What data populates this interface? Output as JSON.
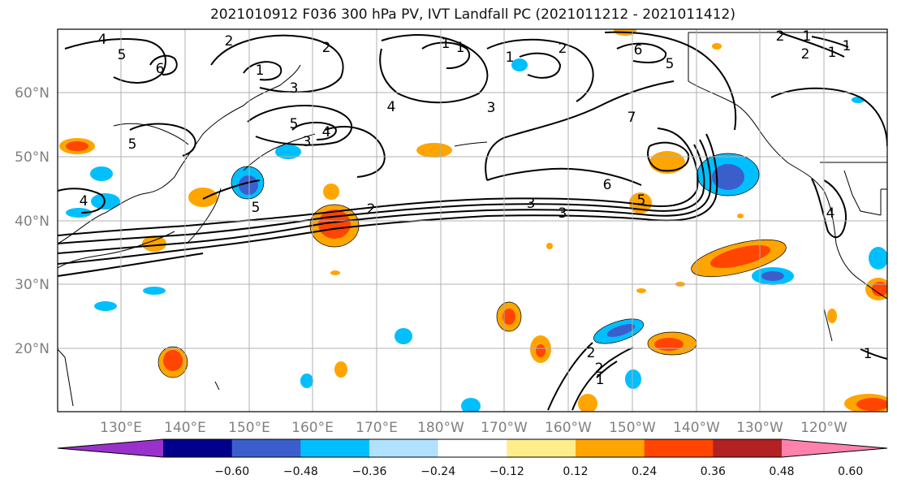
{
  "title": "2021010912 F036 300 hPa PV, IVT Landfall PC (2021011212 - 2021011412)",
  "lat_labels": [
    "60°N",
    "50°N",
    "40°N",
    "30°N",
    "20°N"
  ],
  "lon_labels": [
    "130°E",
    "140°E",
    "150°E",
    "160°E",
    "170°E",
    "180°W",
    "170°W",
    "160°W",
    "150°W",
    "140°W",
    "130°W",
    "120°W"
  ],
  "colorbar": {
    "ticks": [
      "−0.60",
      "−0.48",
      "−0.36",
      "−0.24",
      "−0.12",
      "0.12",
      "0.24",
      "0.36",
      "0.48",
      "0.60"
    ],
    "colors": [
      "#9932cc",
      "#00008b",
      "#3a5fcd",
      "#00bfff",
      "#b0e2ff",
      "#ffffff",
      "#ffec8b",
      "#ffa500",
      "#ff4500",
      "#b22222",
      "#ff82ab"
    ]
  },
  "pv_contour_labels": [
    "4",
    "5",
    "6",
    "1",
    "2",
    "2",
    "1",
    "1",
    "2",
    "6",
    "5",
    "1",
    "1",
    "2",
    "2",
    "1",
    "3",
    "3",
    "4",
    "5",
    "4",
    "5",
    "4",
    "3",
    "7",
    "5",
    "3",
    "3",
    "2",
    "6",
    "5",
    "4",
    "1",
    "1",
    "2",
    "2",
    "1"
  ],
  "colors": {
    "land_line": "#000000",
    "grid": "#b0b0b0",
    "tick_label": "#808080"
  }
}
